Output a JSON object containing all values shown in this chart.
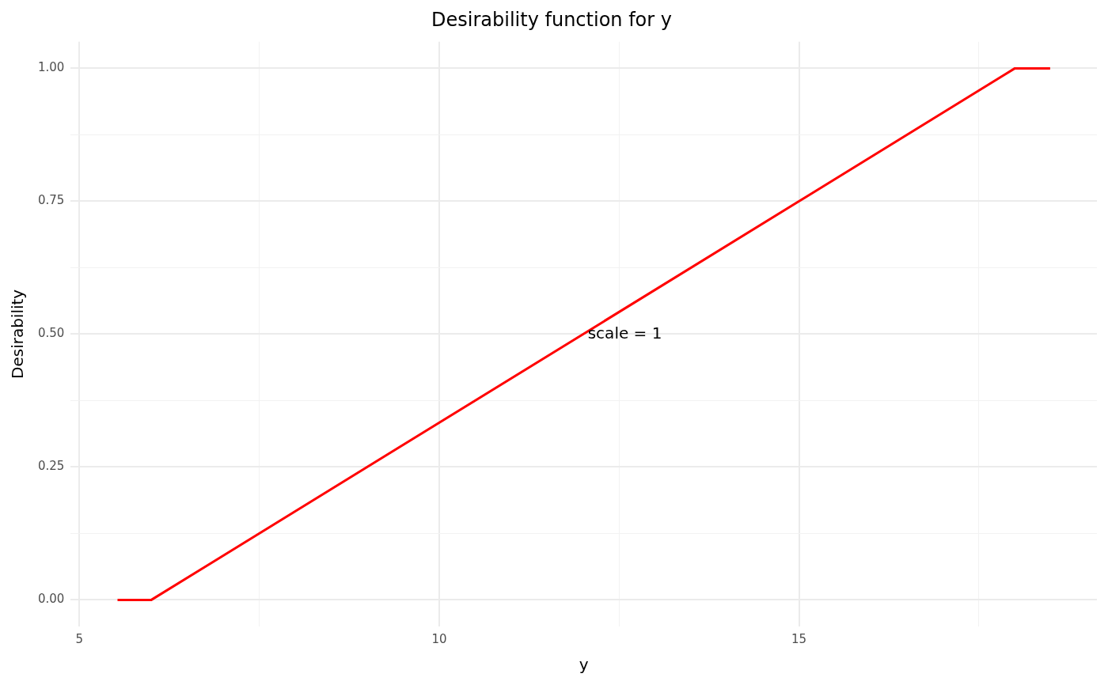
{
  "chart_data": {
    "type": "line",
    "title": "Desirability function for y",
    "xlabel": "y",
    "ylabel": "Desirability",
    "x": [
      5.53,
      6,
      18,
      18.49
    ],
    "series": [
      {
        "color": "#ff0000",
        "values": [
          0,
          0,
          1,
          1
        ]
      }
    ],
    "xlim": [
      4.88,
      19.14
    ],
    "xticks": [
      5,
      {
        "value": 7.5,
        "label": null
      },
      10,
      {
        "value": 12.5,
        "label": null
      },
      15,
      {
        "value": 17.5,
        "label": null
      }
    ],
    "ylim": [
      -0.05,
      1.05
    ],
    "yticks": [
      {
        "value": 0,
        "label": "0.00"
      },
      {
        "value": 0.125,
        "label": null
      },
      {
        "value": 0.25,
        "label": "0.25"
      },
      {
        "value": 0.375,
        "label": null
      },
      {
        "value": 0.5,
        "label": "0.50"
      },
      {
        "value": 0.625,
        "label": null
      },
      {
        "value": 0.75,
        "label": "0.75"
      },
      {
        "value": 0.875,
        "label": null
      },
      {
        "value": 1,
        "label": "1.00"
      }
    ],
    "annotations": [
      "scale = 1"
    ],
    "grid": true,
    "legend": false,
    "marker": "none",
    "line_style": "solid"
  }
}
